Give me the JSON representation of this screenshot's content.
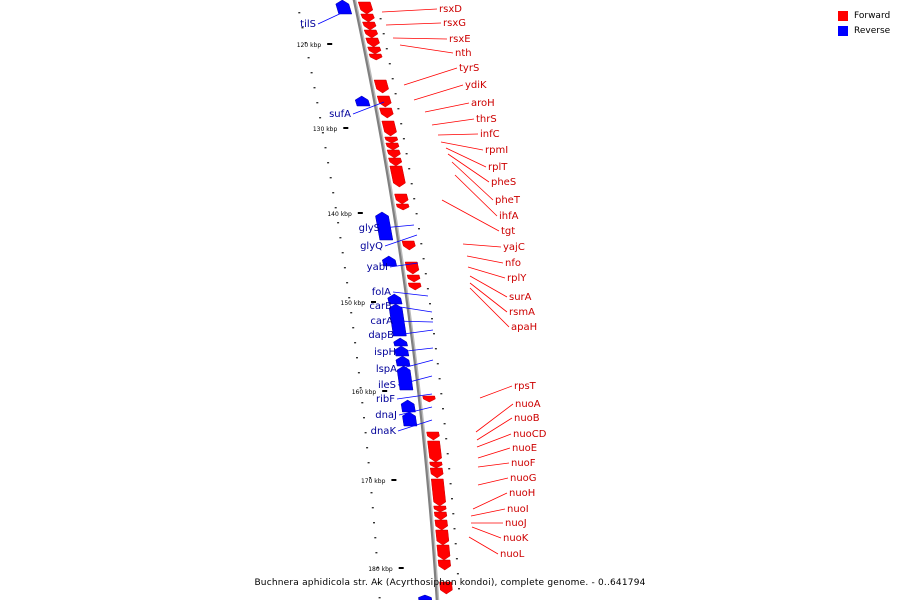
{
  "caption": "Buchnera aphidicola str. Ak (Acyrthosiphon kondoi), complete genome. - 0..641794",
  "legend": [
    {
      "label": "Forward",
      "color": "#ff0000"
    },
    {
      "label": "Reverse",
      "color": "#0000ff"
    }
  ],
  "colors": {
    "forward": "#ff0000",
    "reverse": "#0000ff",
    "forward_label": "#cc0000",
    "reverse_label": "#000099",
    "backbone": "#808080"
  },
  "scale_labels": [
    "120 kbp",
    "130 kbp",
    "140 kbp",
    "150 kbp",
    "160 kbp",
    "170 kbp",
    "180 kbp"
  ],
  "forward_genes": [
    "rsxD",
    "rsxG",
    "rsxE",
    "nth",
    "tyrS",
    "ydiK",
    "aroH",
    "thrS",
    "infC",
    "rpmI",
    "rplT",
    "pheS",
    "pheT",
    "ihfA",
    "tgt",
    "yajC",
    "nfo",
    "rplY",
    "surA",
    "rsmA",
    "apaH",
    "rpsT",
    "nuoA",
    "nuoB",
    "nuoCD",
    "nuoE",
    "nuoF",
    "nuoG",
    "nuoH",
    "nuoI",
    "nuoJ",
    "nuoK",
    "nuoL"
  ],
  "reverse_genes": [
    "tilS",
    "sufA",
    "glyS",
    "glyQ",
    "yabI",
    "folA",
    "carB",
    "carA",
    "dapB",
    "ispH",
    "lspA",
    "ileS",
    "ribF",
    "dnaJ",
    "dnaK"
  ]
}
